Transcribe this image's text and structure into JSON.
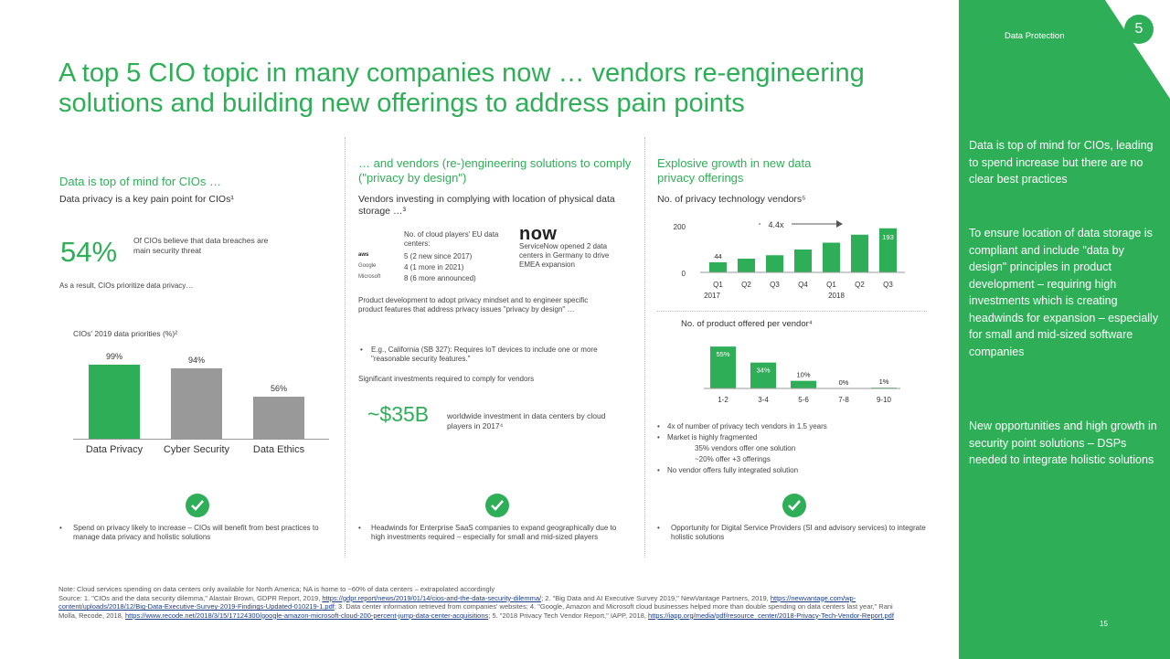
{
  "title": "A top 5 CIO topic in many companies now … vendors re-engineering solutions and building new offerings to address pain points",
  "col1": {
    "heading": "Data is top of mind for CIOs …",
    "subheading": "Data privacy is a key pain point for CIOs¹",
    "stat_value": "54%",
    "stat_text": "Of CIOs believe that data breaches are main security threat",
    "result_text": "As a result, CIOs prioritize data privacy…",
    "chart_title": "CIOs' 2019 data priorities (%)²",
    "bullet": "Spend on privacy likely to increase – CIOs will benefit from best practices to manage data privacy and holistic solutions"
  },
  "col2": {
    "heading": "… and vendors (re-)engineering solutions to comply (\"privacy by design\")",
    "subheading": "Vendors investing in complying with location of physical data storage …³",
    "cloud_intro": "No. of cloud players' EU data centers:",
    "cloud_rows": [
      {
        "logo": "aws",
        "text": "5 (2 new since 2017)"
      },
      {
        "logo": "Google",
        "text": "4 (1 more in 2021)"
      },
      {
        "logo": "Microsoft",
        "text": "8 (6 more announced)"
      }
    ],
    "now_logo": "now",
    "now_text": "ServiceNow opened 2 data centers in Germany to drive EMEA expansion",
    "product_text": "Product development to adopt privacy mindset and to engineer specific product features that address privacy issues \"privacy by design\" …",
    "california": "E.g., California (SB 327): Requires IoT devices to include one or more \"reasonable security features.\"",
    "significant": "Significant investments required to comply for vendors",
    "stat_value": "~$35B",
    "stat_text": "worldwide investment in data centers by cloud players in 2017⁴",
    "bullet": "Headwinds for Enterprise SaaS companies to expand geographically due to high investments required – especially for small and mid-sized players"
  },
  "col3": {
    "heading": "Explosive growth in new data privacy offerings",
    "chart1_title": "No. of privacy technology vendors⁵",
    "growth_label": "4.4x",
    "year_2017": "2017",
    "year_2018": "2018",
    "chart2_title": "No. of product offered per vendor⁴",
    "bullets": [
      "4x of number of privacy tech vendors in 1.5 years",
      "Market is highly fragmented",
      "35% vendors offer one solution",
      "~20% offer +3 offerings",
      "No vendor offers fully integrated solution"
    ],
    "bullet": "Opportunity for Digital Service Providers (SI and advisory services) to integrate holistic solutions"
  },
  "chart_data": [
    {
      "type": "bar",
      "title": "CIOs' 2019 data priorities (%)²",
      "categories": [
        "Data Privacy",
        "Cyber Security",
        "Data Ethics"
      ],
      "values": [
        99,
        94,
        56
      ],
      "value_labels": [
        "99%",
        "94%",
        "56%"
      ],
      "colors": [
        "#2eaf57",
        "#999999",
        "#999999"
      ],
      "ylim": [
        0,
        100
      ]
    },
    {
      "type": "bar",
      "title": "No. of privacy technology vendors⁵",
      "categories": [
        "Q1",
        "Q2",
        "Q3",
        "Q4",
        "Q1",
        "Q2",
        "Q3"
      ],
      "values": [
        44,
        60,
        75,
        100,
        130,
        165,
        193
      ],
      "value_labels": [
        "44",
        "",
        "",
        "",
        "",
        "",
        "193"
      ],
      "y_ticks": [
        "0",
        "200"
      ],
      "ylim": [
        0,
        200
      ]
    },
    {
      "type": "bar",
      "title": "No. of product offered per vendor⁴",
      "categories": [
        "1-2",
        "3-4",
        "5-6",
        "7-8",
        "9-10"
      ],
      "values": [
        55,
        34,
        10,
        0,
        1
      ],
      "value_labels": [
        "55%",
        "34%",
        "10%",
        "0%",
        "1%"
      ],
      "ylim": [
        0,
        60
      ]
    }
  ],
  "footer": {
    "note": "Note: Cloud services spending on data centers only available for North America; NA is home to ~60% of data centers – extrapolated accordingly",
    "source_1": "Source: 1. \"CIOs and the data security dilemma,\" Alastair Brown, GDPR Report, 2019, ",
    "link_1": "https://gdpr.report/news/2019/01/14/cios-and-the-data-security-dilemma/",
    "source_2": "; 2. \"Big Data and AI Executive Survey 2019,\" NewVantage Partners, 2019, ",
    "link_2": "https://newvantage.com/wp-content/uploads/2018/12/Big-Data-Executive-Survey-2019-Findings-Updated-010219-1.pdf",
    "source_3": "; 3. Data center information retrieved from companies' websites; 4. \"Google, Amazon and Microsoft cloud businesses helped more than double spending on data centers last year,\" Rani Molla, Recode, 2018, ",
    "link_3": "https://www.recode.net/2018/3/15/17124300/google-amazon-microsoft-cloud-200-percent-jump-data-center-acquisitions",
    "source_4": "; 5. \"2018 Privacy Tech Vendor Report,\" IAPP, 2018, ",
    "link_4": "https://iapp.org/media/pdf/resource_center/2018-Privacy-Tech-Vendor-Report.pdf"
  },
  "side": {
    "section": "Data Protection",
    "badge": "5",
    "para1": "Data is top of mind for CIOs, leading to spend increase but there are no clear best practices",
    "para2": "To ensure location of data storage is compliant and include \"data by design\" principles in product development – requiring high investments which is creating headwinds for expansion – especially for small and mid-sized software companies",
    "para3": "New opportunities and high growth in security point solutions – DSPs needed to integrate holistic solutions",
    "page": "15"
  },
  "colors": {
    "brand_green": "#2eaf57",
    "bar_grey": "#999999"
  }
}
